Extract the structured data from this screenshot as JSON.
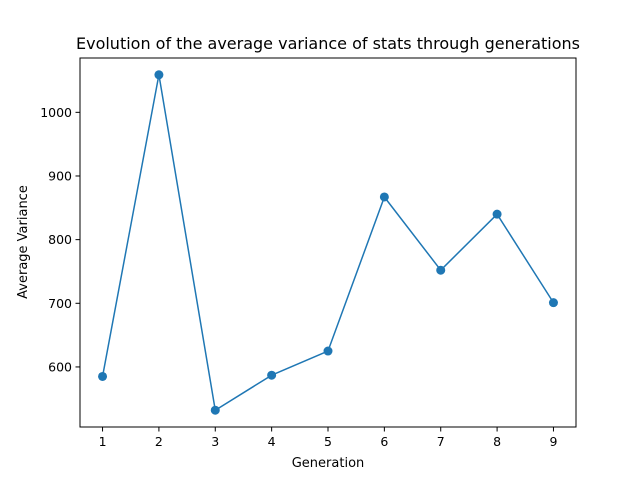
{
  "chart_data": {
    "type": "line",
    "title": "Evolution of the average variance of stats through generations",
    "xlabel": "Generation",
    "ylabel": "Average Variance",
    "x": [
      1,
      2,
      3,
      4,
      5,
      6,
      7,
      8,
      9
    ],
    "series": [
      {
        "values": [
          585,
          1059,
          532,
          587,
          625,
          867,
          752,
          840,
          701
        ],
        "color": "#1f77b4",
        "marker": "circle"
      }
    ],
    "xticks": [
      "1",
      "2",
      "3",
      "4",
      "5",
      "6",
      "7",
      "8",
      "9"
    ],
    "yticks": [
      "600",
      "700",
      "800",
      "900",
      "1000"
    ],
    "xlim": [
      0.6,
      9.4
    ],
    "ylim": [
      505.65,
      1085.35
    ],
    "grid": false,
    "legend": "none"
  }
}
